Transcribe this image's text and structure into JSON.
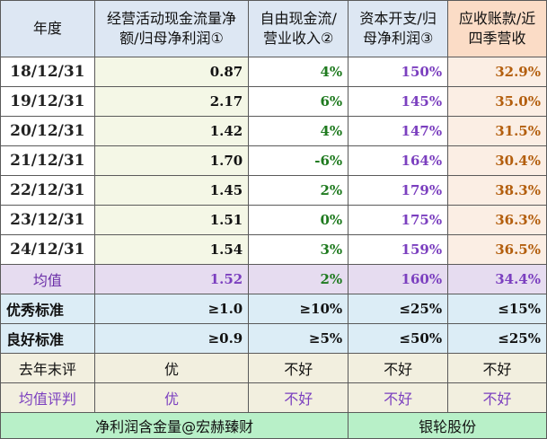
{
  "header": {
    "year": "年度",
    "ocf": "经营活动现金流量净额/归母净利润①",
    "fcf": "自由现金流/营业收入②",
    "capex": "资本开支/归母净利润③",
    "ar": "应收账款/近四季营收"
  },
  "rows": [
    {
      "date": "18/12/31",
      "ocf": "0.87",
      "fcf": "4%",
      "capex": "150%",
      "ar": "32.9%"
    },
    {
      "date": "19/12/31",
      "ocf": "2.17",
      "fcf": "6%",
      "capex": "145%",
      "ar": "35.0%"
    },
    {
      "date": "20/12/31",
      "ocf": "1.42",
      "fcf": "4%",
      "capex": "147%",
      "ar": "31.5%"
    },
    {
      "date": "21/12/31",
      "ocf": "1.70",
      "fcf": "-6%",
      "capex": "164%",
      "ar": "30.4%"
    },
    {
      "date": "22/12/31",
      "ocf": "1.45",
      "fcf": "2%",
      "capex": "179%",
      "ar": "38.3%"
    },
    {
      "date": "23/12/31",
      "ocf": "1.51",
      "fcf": "0%",
      "capex": "175%",
      "ar": "36.3%"
    },
    {
      "date": "24/12/31",
      "ocf": "1.54",
      "fcf": "3%",
      "capex": "159%",
      "ar": "36.5%"
    }
  ],
  "average": {
    "label": "均值",
    "ocf": "1.52",
    "fcf": "2%",
    "capex": "160%",
    "ar": "34.4%"
  },
  "excellent": {
    "label": "优秀标准",
    "ocf": "≥1.0",
    "fcf": "≥10%",
    "capex": "≤25%",
    "ar": "≤15%"
  },
  "good": {
    "label": "良好标准",
    "ocf": "≥0.9",
    "fcf": "≥5%",
    "capex": "≤50%",
    "ar": "≤25%"
  },
  "last_year_eval": {
    "label": "去年末评",
    "ocf": "优",
    "fcf": "不好",
    "capex": "不好",
    "ar": "不好"
  },
  "avg_eval": {
    "label": "均值评判",
    "ocf": "优",
    "fcf": "不好",
    "capex": "不好",
    "ar": "不好"
  },
  "footer": {
    "left": "净利润含金量@宏赫臻财",
    "right": "银轮股份"
  }
}
